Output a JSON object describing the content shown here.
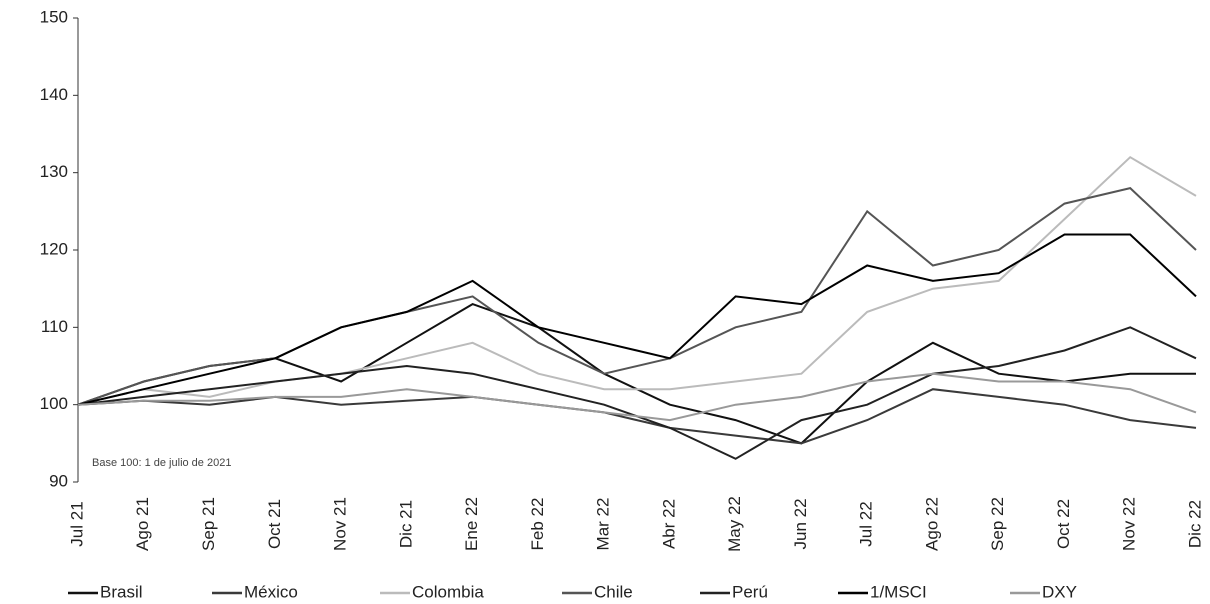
{
  "chart_data": {
    "type": "line",
    "annotation": "Base 100: 1 de julio de 2021",
    "categories": [
      "Jul 21",
      "Ago 21",
      "Sep 21",
      "Oct 21",
      "Nov 21",
      "Dic 21",
      "Ene 22",
      "Feb 22",
      "Mar 22",
      "Abr 22",
      "May 22",
      "Jun 22",
      "Jul 22",
      "Ago 22",
      "Sep 22",
      "Oct 22",
      "Nov 22",
      "Dic 22"
    ],
    "series": [
      {
        "name": "Brasil",
        "color": "#111111",
        "values": [
          100,
          103,
          105,
          106,
          103,
          108,
          113,
          110,
          104,
          100,
          98,
          95,
          103,
          108,
          104,
          103,
          104,
          104
        ]
      },
      {
        "name": "México",
        "color": "#3a3a3a",
        "values": [
          100,
          100.5,
          100,
          101,
          100,
          100.5,
          101,
          100,
          99,
          97,
          96,
          95,
          98,
          102,
          101,
          100,
          98,
          97
        ]
      },
      {
        "name": "Colombia",
        "color": "#bbbbbb",
        "values": [
          100,
          102,
          101,
          103,
          104,
          106,
          108,
          104,
          102,
          102,
          103,
          104,
          112,
          115,
          116,
          124,
          132,
          127
        ]
      },
      {
        "name": "Chile",
        "color": "#555555",
        "values": [
          100,
          103,
          105,
          106,
          110,
          112,
          114,
          108,
          104,
          106,
          110,
          112,
          125,
          118,
          120,
          126,
          128,
          120
        ]
      },
      {
        "name": "Perú",
        "color": "#222222",
        "values": [
          100,
          101,
          102,
          103,
          104,
          105,
          104,
          102,
          100,
          97,
          93,
          98,
          100,
          104,
          105,
          107,
          110,
          106
        ]
      },
      {
        "name": "1/MSCI",
        "color": "#000000",
        "values": [
          100,
          102,
          104,
          106,
          110,
          112,
          116,
          110,
          108,
          106,
          114,
          113,
          118,
          116,
          117,
          122,
          122,
          114
        ]
      },
      {
        "name": "DXY",
        "color": "#999999",
        "values": [
          100,
          100.5,
          100.5,
          101,
          101,
          102,
          101,
          100,
          99,
          98,
          100,
          101,
          103,
          104,
          103,
          103,
          102,
          99
        ]
      }
    ],
    "ylim": [
      90,
      150
    ],
    "yticks": [
      90,
      100,
      110,
      120,
      130,
      140,
      150
    ]
  }
}
